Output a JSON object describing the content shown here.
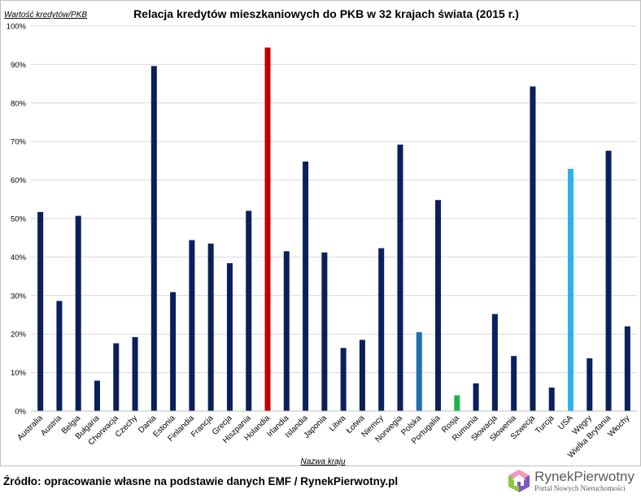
{
  "chart_data": {
    "type": "bar",
    "title": "Relacja kredytów mieszkaniowych do PKB w 32 krajach świata (2015 r.)",
    "ylabel": "Wartość kredytów/PKB",
    "xlabel": "Nazwa kraju",
    "ylim": [
      0,
      100
    ],
    "yticks": [
      "0%",
      "10%",
      "20%",
      "30%",
      "40%",
      "50%",
      "60%",
      "70%",
      "80%",
      "90%",
      "100%"
    ],
    "grid": true,
    "legend": "none",
    "categories": [
      "Australia",
      "Austria",
      "Belgia",
      "Bułgaria",
      "Chorwacja",
      "Czechy",
      "Dania",
      "Estonia",
      "Finlandia",
      "Francja",
      "Grecja",
      "Hiszpania",
      "Holandia",
      "Irlandia",
      "Islandia",
      "Japonia",
      "Litwa",
      "Łotwa",
      "Niemcy",
      "Norwegia",
      "Polska",
      "Portugalia",
      "Rosja",
      "Rumunia",
      "Słowacja",
      "Słowenia",
      "Szwecja",
      "Turcja",
      "USA",
      "Węgry",
      "Wielka Brytania",
      "Włochy"
    ],
    "values": [
      51.7,
      28.6,
      50.7,
      7.9,
      17.6,
      19.2,
      89.6,
      30.9,
      44.4,
      43.5,
      38.4,
      52.0,
      94.4,
      41.5,
      64.8,
      41.2,
      16.4,
      18.5,
      42.3,
      69.2,
      20.5,
      54.8,
      4.1,
      7.2,
      25.2,
      14.3,
      84.3,
      6.1,
      62.9,
      13.7,
      67.6,
      22.0
    ],
    "colors": {
      "default": "#0b1f5c",
      "Holandia": "#c00000",
      "Polska": "#1f6fb4",
      "Rosja": "#1fb24a",
      "USA": "#2cb3e8"
    }
  },
  "footer": {
    "source": "Źródło: opracowanie własne na podstawie danych EMF / RynekPierwotny.pl"
  },
  "logo": {
    "name_part1": "Rynek",
    "name_part2": "Pierwotny",
    "tagline": "Portal Nowych Nieruchomości"
  }
}
